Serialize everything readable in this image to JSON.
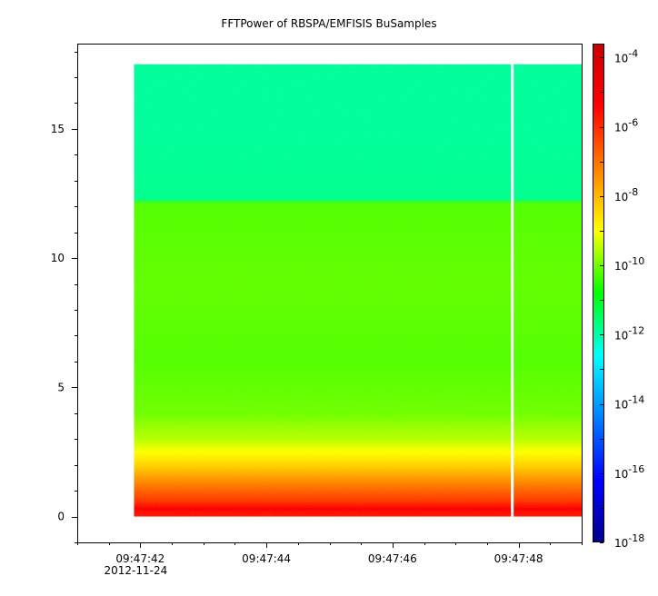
{
  "chart_data": {
    "type": "heatmap",
    "title": "FFTPower of RBSPA/EMFISIS  BuSamples",
    "xlabel": "",
    "ylabel": "",
    "x_tick_labels": [
      "09:47:42",
      "09:47:44",
      "09:47:46",
      "09:47:48"
    ],
    "x_tick_sublabel": "2012-11-24",
    "x_range": [
      "09:47:41",
      "09:47:49"
    ],
    "data_x_range": [
      "09:47:41.9",
      "09:47:49"
    ],
    "gap_at": "09:47:47.9",
    "y_ticks": [
      0,
      5,
      10,
      15
    ],
    "y_range": [
      -1,
      18.3
    ],
    "data_y_range": [
      0,
      17.5
    ],
    "colorbar": {
      "scale": "log",
      "range_exponent": [
        -18,
        -3.6
      ],
      "tick_exponents": [
        -18,
        -16,
        -14,
        -12,
        -10,
        -8,
        -6,
        -4
      ],
      "tick_base": "10",
      "colormap": [
        "#00008b",
        "#0000ff",
        "#0080ff",
        "#00ffff",
        "#00ff00",
        "#ffff00",
        "#ff8000",
        "#ff0000",
        "#c80000"
      ]
    },
    "power_profile": [
      {
        "y": 0.0,
        "log10_power": -5.8
      },
      {
        "y": 0.3,
        "log10_power": -5.3
      },
      {
        "y": 0.6,
        "log10_power": -6.2
      },
      {
        "y": 1.0,
        "log10_power": -6.8
      },
      {
        "y": 1.5,
        "log10_power": -7.6
      },
      {
        "y": 2.0,
        "log10_power": -8.4
      },
      {
        "y": 2.5,
        "log10_power": -9.0
      },
      {
        "y": 3.0,
        "log10_power": -9.5
      },
      {
        "y": 4.0,
        "log10_power": -10.0
      },
      {
        "y": 6.0,
        "log10_power": -10.2
      },
      {
        "y": 9.0,
        "log10_power": -10.1
      },
      {
        "y": 12.1,
        "log10_power": -10.2
      },
      {
        "y": 12.3,
        "log10_power": -11.8
      },
      {
        "y": 15.0,
        "log10_power": -11.9
      },
      {
        "y": 17.5,
        "log10_power": -11.9
      }
    ],
    "grid": false,
    "legend": "colorbar-right"
  }
}
